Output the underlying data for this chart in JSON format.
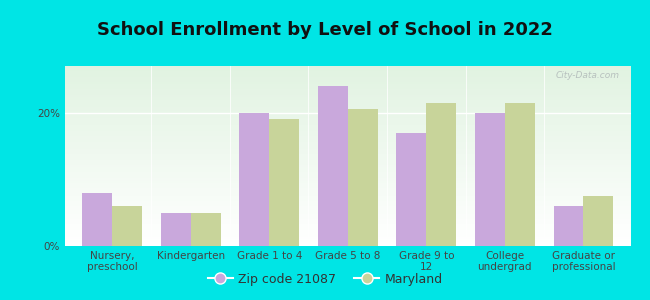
{
  "title": "School Enrollment by Level of School in 2022",
  "categories": [
    "Nursery,\npreschool",
    "Kindergarten",
    "Grade 1 to 4",
    "Grade 5 to 8",
    "Grade 9 to\n12",
    "College\nundergrad",
    "Graduate or\nprofessional"
  ],
  "zip_values": [
    8.0,
    5.0,
    20.0,
    24.0,
    17.0,
    20.0,
    6.0
  ],
  "md_values": [
    6.0,
    5.0,
    19.0,
    20.5,
    21.5,
    21.5,
    7.5
  ],
  "zip_color": "#C9A8DC",
  "md_color": "#C8D49A",
  "zip_label": "Zip code 21087",
  "md_label": "Maryland",
  "ylim": [
    0,
    27
  ],
  "yticks": [
    0,
    20
  ],
  "ytick_labels": [
    "0%",
    "20%"
  ],
  "background_outer": "#00E5E5",
  "watermark": "City-Data.com",
  "bar_width": 0.38,
  "title_fontsize": 13,
  "label_fontsize": 7.5,
  "legend_fontsize": 9
}
